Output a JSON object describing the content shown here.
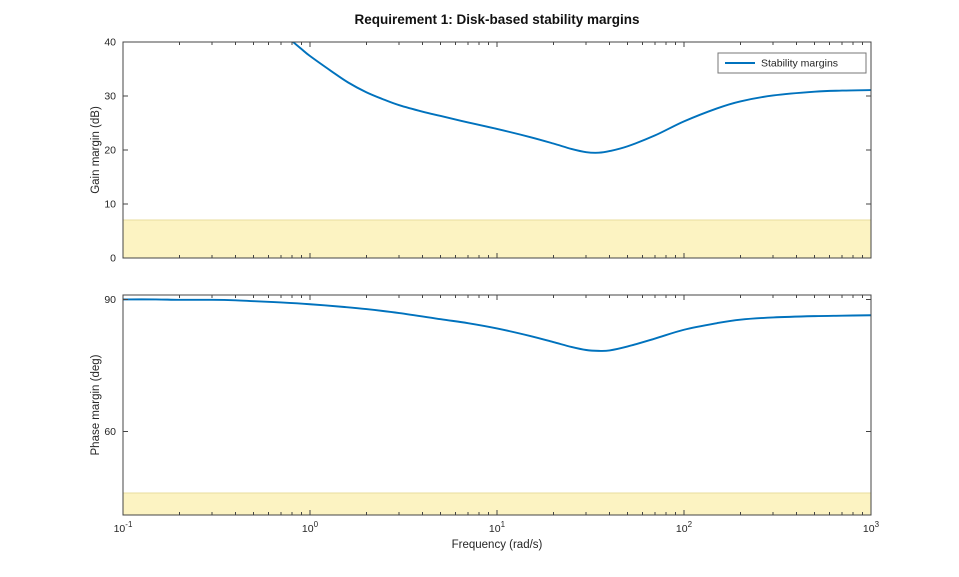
{
  "figure": {
    "title": "Requirement 1: Disk-based stability margins",
    "xlabel": "Frequency (rad/s)",
    "legend_label": "Stability margins",
    "colors": {
      "line": "#0072BD",
      "band_fill": "#FCF3C2",
      "band_edge": "#E9DC9E",
      "axis": "#444444",
      "text": "#262626",
      "legend_edge": "#777777"
    }
  },
  "chart_data": [
    {
      "type": "line",
      "name": "gain-margin-plot",
      "ylabel": "Gain margin (dB)",
      "xscale": "log",
      "xlim": [
        0.1,
        1000
      ],
      "ylim": [
        0,
        40
      ],
      "yticks": [
        0,
        10,
        20,
        30,
        40
      ],
      "xtick_exponents": [
        -1,
        0,
        1,
        2,
        3
      ],
      "requirement_band": {
        "from": 0,
        "to": 7
      },
      "legend": {
        "show": true,
        "position": "northeast"
      },
      "series": [
        {
          "name": "Stability margins",
          "x": [
            0.5,
            0.6,
            0.7,
            0.8,
            0.9,
            1.0,
            1.3,
            1.6,
            2.0,
            2.5,
            3.0,
            4.0,
            5.0,
            7.0,
            10,
            15,
            20,
            25,
            30,
            35,
            40,
            50,
            70,
            100,
            150,
            200,
            300,
            500,
            700,
            1000
          ],
          "y": [
            48.0,
            44.5,
            42.0,
            40.2,
            38.7,
            37.4,
            34.6,
            32.5,
            30.7,
            29.3,
            28.3,
            27.1,
            26.3,
            25.1,
            23.9,
            22.4,
            21.2,
            20.2,
            19.6,
            19.5,
            19.8,
            20.7,
            22.7,
            25.3,
            27.7,
            29.0,
            30.1,
            30.8,
            31.0,
            31.1
          ]
        }
      ]
    },
    {
      "type": "line",
      "name": "phase-margin-plot",
      "ylabel": "Phase margin (deg)",
      "xscale": "log",
      "xlim": [
        0.1,
        1000
      ],
      "ylim": [
        41,
        91
      ],
      "yticks": [
        60,
        90
      ],
      "xtick_exponents": [
        -1,
        0,
        1,
        2,
        3
      ],
      "requirement_band": {
        "from": 41,
        "to": 46
      },
      "legend": {
        "show": false
      },
      "series": [
        {
          "name": "Stability margins",
          "x": [
            0.1,
            0.15,
            0.2,
            0.3,
            0.4,
            0.5,
            0.7,
            1.0,
            1.5,
            2.0,
            3.0,
            5.0,
            7.0,
            10,
            15,
            20,
            25,
            30,
            35,
            40,
            50,
            70,
            100,
            150,
            200,
            300,
            500,
            700,
            1000
          ],
          "y": [
            90.0,
            90.0,
            89.9,
            89.9,
            89.8,
            89.6,
            89.3,
            88.9,
            88.3,
            87.8,
            86.9,
            85.5,
            84.6,
            83.4,
            81.7,
            80.3,
            79.2,
            78.5,
            78.3,
            78.4,
            79.3,
            81.1,
            83.1,
            84.6,
            85.4,
            85.9,
            86.2,
            86.3,
            86.4
          ]
        }
      ]
    }
  ]
}
